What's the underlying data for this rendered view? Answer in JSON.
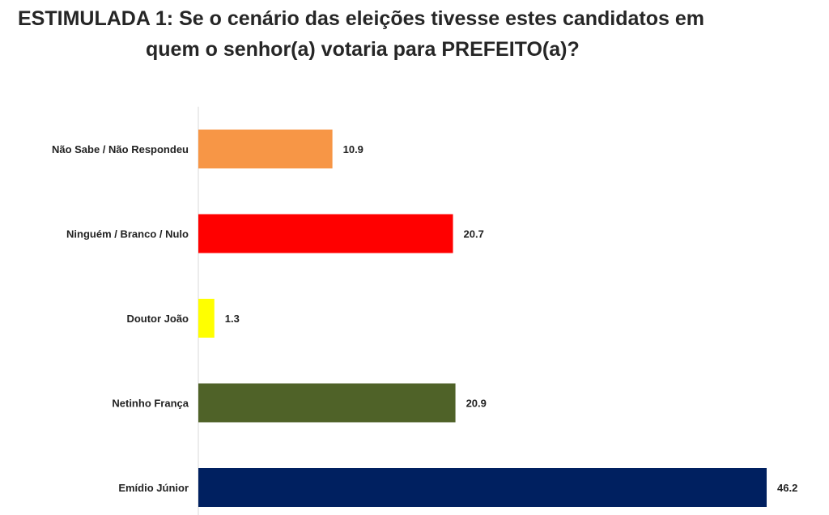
{
  "title": {
    "line1": "ESTIMULADA 1: Se o cenário das eleições tivesse estes candidatos em",
    "line2": "quem o senhor(a) votaria para PREFEITO(a)?"
  },
  "chart_data": {
    "type": "bar",
    "orientation": "horizontal",
    "title": "ESTIMULADA 1: Se o cenário das eleições tivesse estes candidatos em quem o senhor(a) votaria para PREFEITO(a)?",
    "categories": [
      "Não Sabe / Não Respondeu",
      "Ninguém / Branco / Nulo",
      "Doutor João",
      "Netinho França",
      "Emídio Júnior"
    ],
    "values": [
      10.9,
      20.7,
      1.3,
      20.9,
      46.2
    ],
    "value_labels": [
      "10.9",
      "20.7",
      "1.3",
      "20.9",
      "46.2"
    ],
    "colors": [
      "#f79646",
      "#ff0000",
      "#ffff00",
      "#4f6228",
      "#002060"
    ],
    "xlim": [
      0,
      46.2
    ],
    "xlabel": "",
    "ylabel": "",
    "grid": false,
    "legend": "none"
  }
}
